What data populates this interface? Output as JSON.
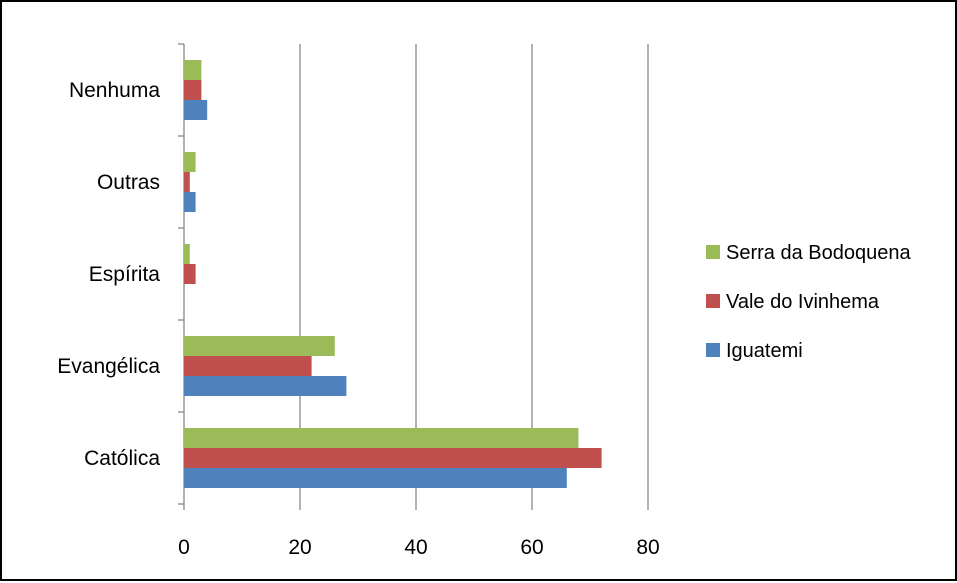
{
  "chart_data": {
    "type": "bar",
    "orientation": "horizontal",
    "categories": [
      "Católica",
      "Evangélica",
      "Espírita",
      "Outras",
      "Nenhuma"
    ],
    "series": [
      {
        "name": "Iguatemi",
        "color": "#4F81BD",
        "values": [
          66,
          28,
          0,
          2,
          4
        ]
      },
      {
        "name": "Vale do Ivinhema",
        "color": "#C0504D",
        "values": [
          72,
          22,
          2,
          1,
          3
        ]
      },
      {
        "name": "Serra da Bodoquena",
        "color": "#9BBB59",
        "values": [
          68,
          26,
          1,
          2,
          3
        ]
      }
    ],
    "x_ticks": [
      "0",
      "20",
      "40",
      "60",
      "80"
    ],
    "xlim": [
      0,
      80
    ],
    "grid": "vertical",
    "legend_position": "right",
    "legend_order": [
      "Serra da Bodoquena",
      "Vale do Ivinhema",
      "Iguatemi"
    ]
  }
}
